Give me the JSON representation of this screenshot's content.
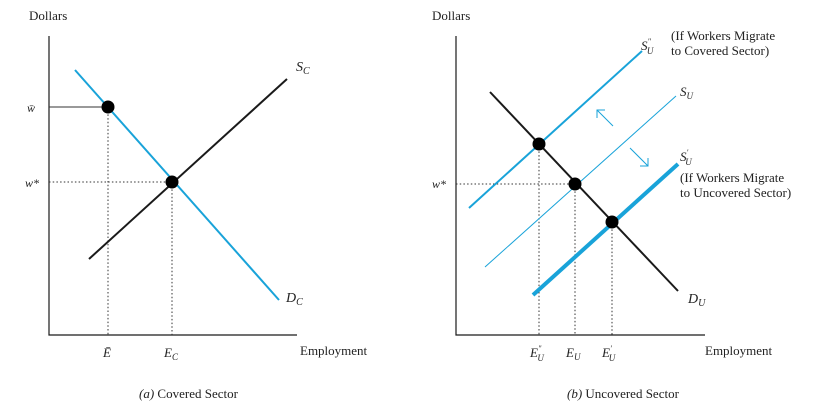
{
  "panel_a": {
    "y_axis_label": "Dollars",
    "x_axis_label": "Employment",
    "caption_letter": "(a)",
    "caption_text": " Covered Sector",
    "w_bar_label": "w̄",
    "w_star_label": "w*",
    "e_bar_label": "Ē",
    "e_c_main": "E",
    "e_c_sub": "C",
    "s_c_main": "S",
    "s_c_sub": "C",
    "d_c_main": "D",
    "d_c_sub": "C"
  },
  "panel_b": {
    "y_axis_label": "Dollars",
    "x_axis_label": "Employment",
    "caption_letter": "(b)",
    "caption_text": " Uncovered Sector",
    "w_star_label": "w*",
    "s_u2_main": "S",
    "s_u2_sub": "U",
    "s_u2_sup": "\"",
    "note_covered_line1": "(If Workers Migrate",
    "note_covered_line2": "to Covered Sector)",
    "s_u_main": "S",
    "s_u_sub": "U",
    "s_u1_main": "S",
    "s_u1_sub": "U",
    "s_u1_sup": "′",
    "note_uncovered_line1": "(If Workers Migrate",
    "note_uncovered_line2": "to Uncovered Sector)",
    "d_u_main": "D",
    "d_u_sub": "U",
    "e_u2_main": "E",
    "e_u2_sub": "U",
    "e_u2_sup": "\"",
    "e_u_main": "E",
    "e_u_sub": "U",
    "e_u1_main": "E",
    "e_u1_sub": "U",
    "e_u1_sup": "′"
  },
  "colors": {
    "black_curve": "#1a1a1a",
    "blue_curve": "#19a3d9",
    "point": "#000000"
  }
}
